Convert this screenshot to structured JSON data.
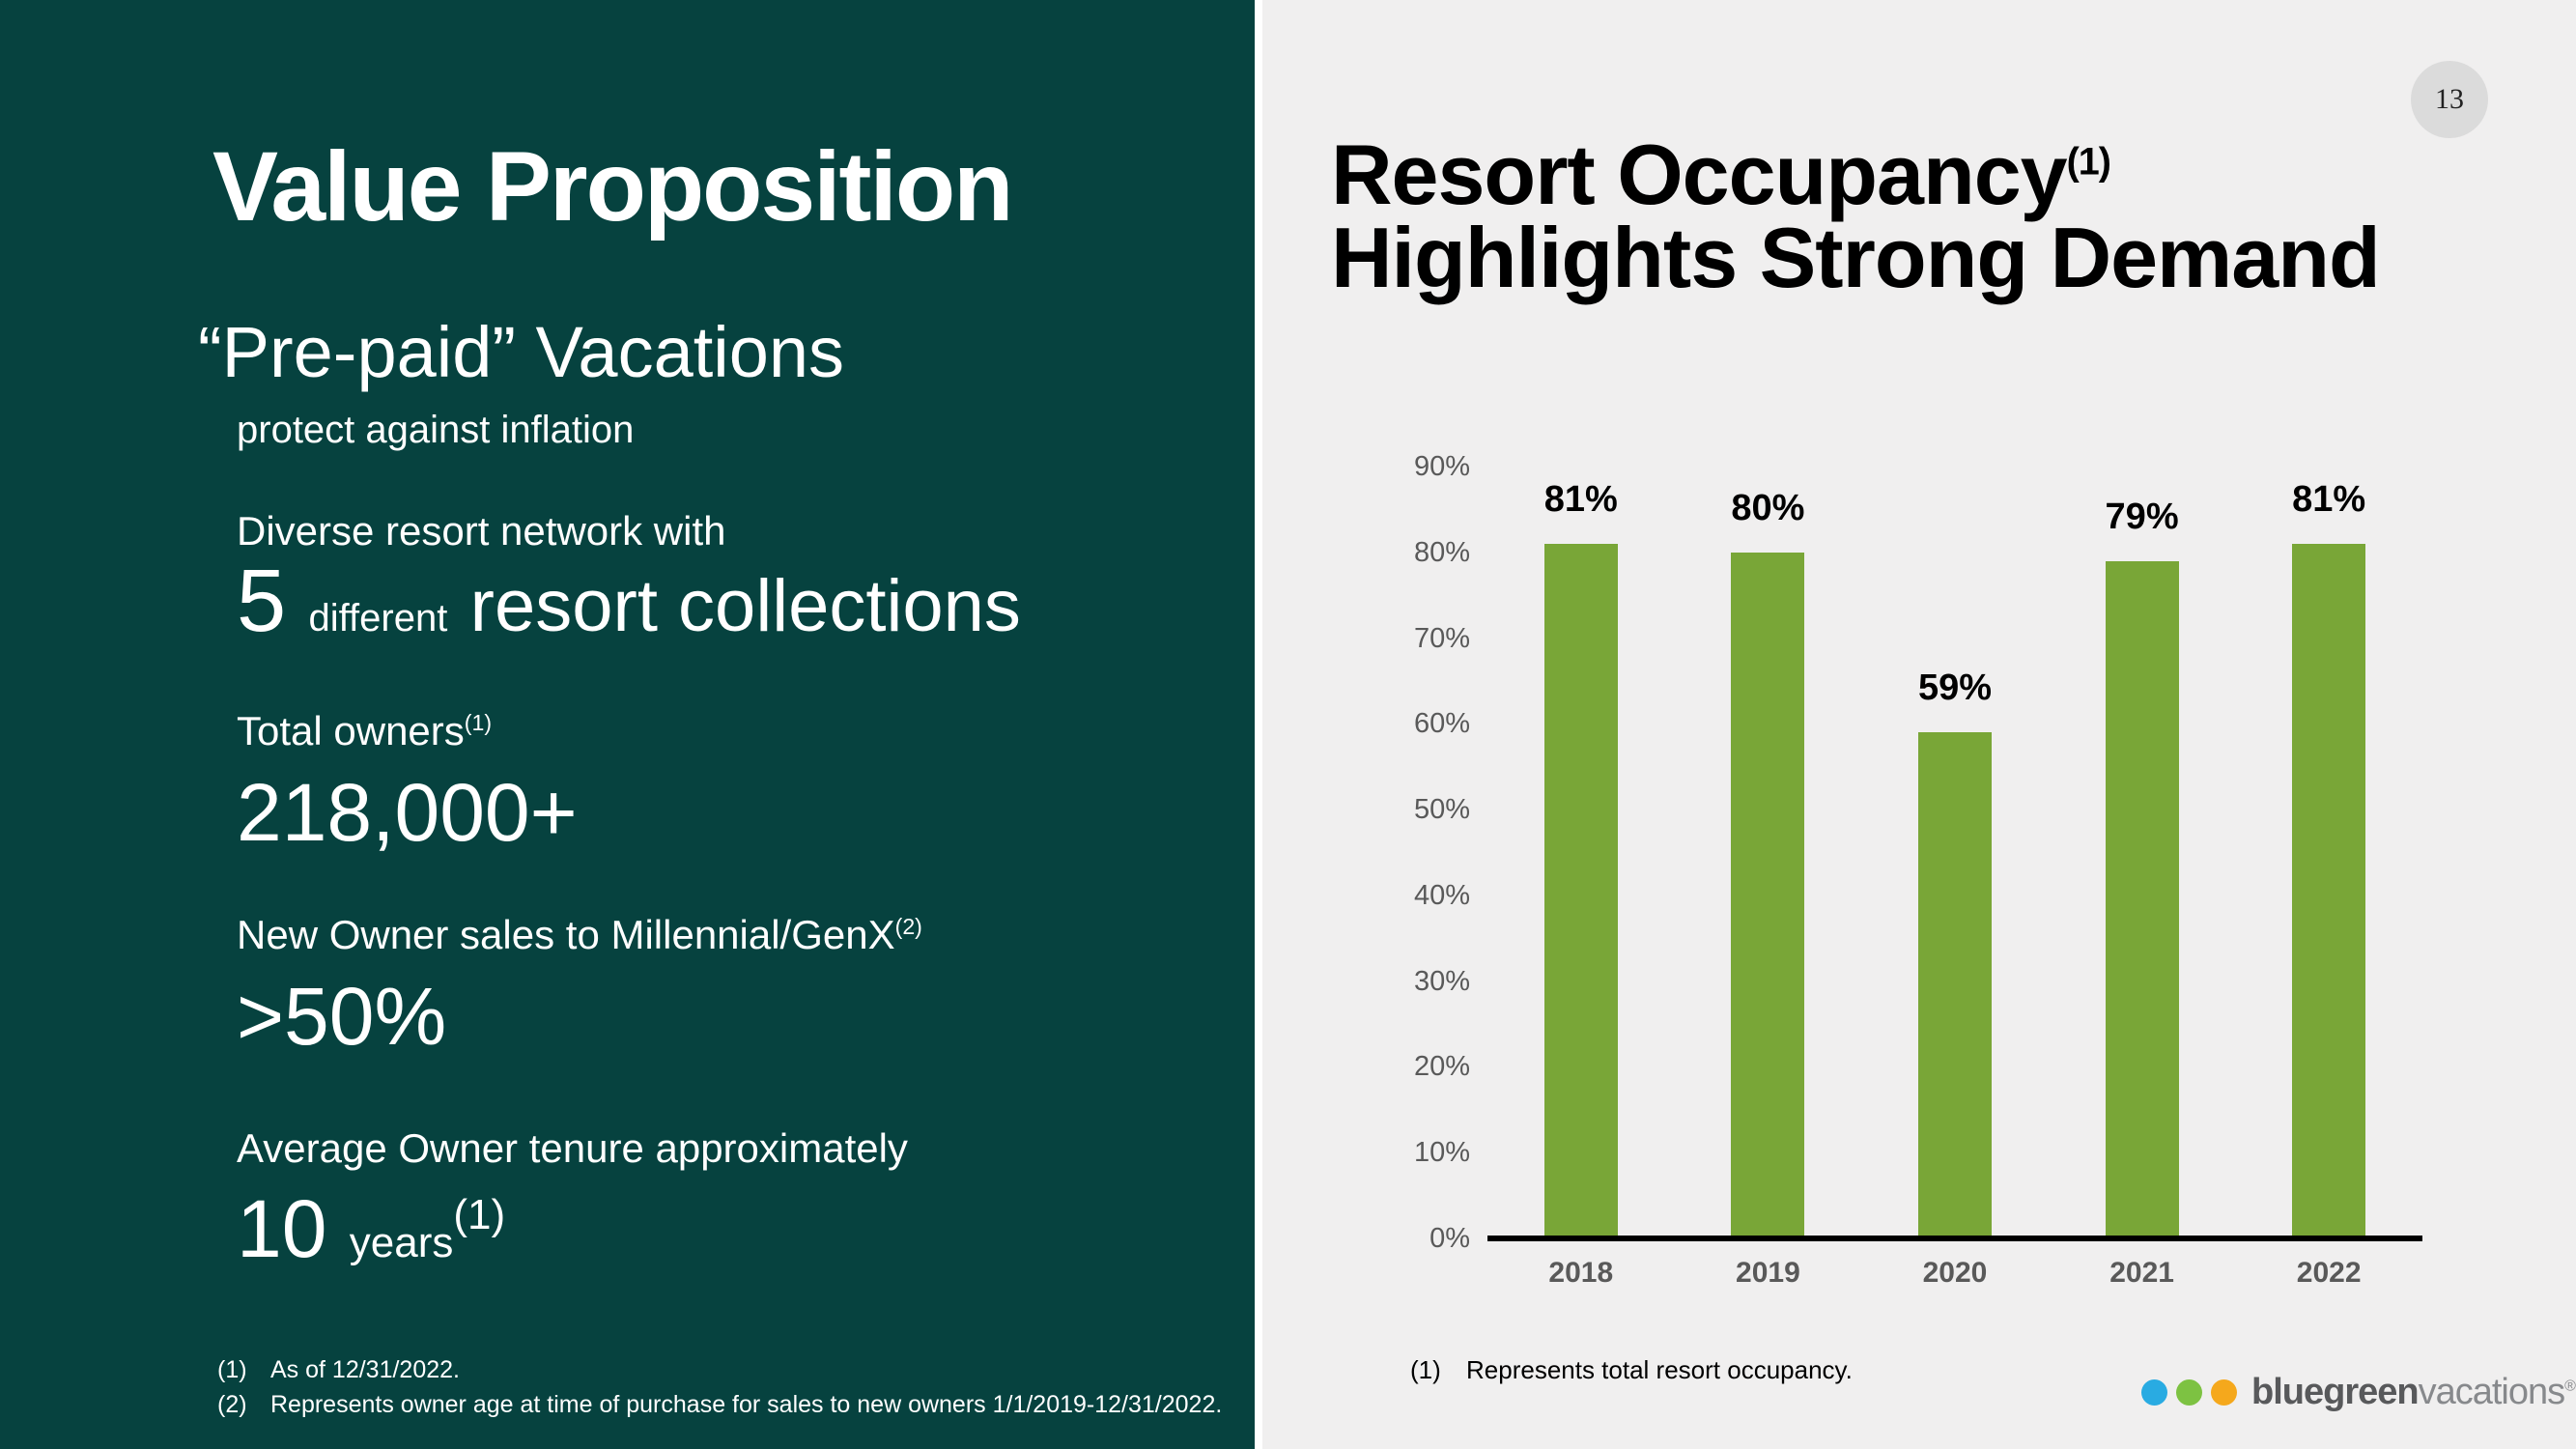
{
  "left_panel": {
    "title": "Value Proposition",
    "prepaid_heading": "“Pre-paid” Vacations",
    "prepaid_sub": "protect against inflation",
    "diverse_label": "Diverse resort network with",
    "diverse_number": "5",
    "diverse_small": "different",
    "diverse_rest": "resort collections",
    "owners_label": "Total owners",
    "owners_sup": "(1)",
    "owners_value": "218,000+",
    "millennial_label": "New Owner sales to Millennial/GenX",
    "millennial_sup": "(2)",
    "millennial_value": ">50%",
    "tenure_label": "Average Owner tenure approximately",
    "tenure_number": "10",
    "tenure_unit": "years",
    "tenure_sup": "(1)",
    "footnotes": [
      {
        "num": "(1)",
        "text": "As of 12/31/2022."
      },
      {
        "num": "(2)",
        "text": "Represents owner age at time of purchase for sales to new owners 1/1/2019-12/31/2022."
      }
    ]
  },
  "right_panel": {
    "page_number": "13",
    "title_line1": "Resort Occupancy",
    "title_sup": "(1)",
    "title_line2": "Highlights Strong Demand",
    "footnote": {
      "num": "(1)",
      "text": "Represents total resort occupancy."
    },
    "logo": {
      "text_bold": "bluegreen",
      "text_light": "vacations",
      "reg": "®"
    }
  },
  "chart_data": {
    "type": "bar",
    "title": "Resort Occupancy Highlights Strong Demand",
    "categories": [
      "2018",
      "2019",
      "2020",
      "2021",
      "2022"
    ],
    "values": [
      81,
      80,
      59,
      79,
      81
    ],
    "data_labels": [
      "81%",
      "80%",
      "59%",
      "79%",
      "81%"
    ],
    "y_ticks": [
      "0%",
      "10%",
      "20%",
      "30%",
      "40%",
      "50%",
      "60%",
      "70%",
      "80%",
      "90%"
    ],
    "ylim": [
      0,
      90
    ],
    "xlabel": "",
    "ylabel": "",
    "grid": "off",
    "legend": "none",
    "bar_color": "#79A637",
    "baseline_color": "#000000",
    "tick_color": "#595959"
  },
  "colors": {
    "left_bg": "#06423F",
    "right_bg": "#F0EFEF",
    "page_circle_bg": "#DBDBDB",
    "logo_blue": "#29ABE2",
    "logo_green": "#7DC242",
    "logo_orange": "#F5A81C",
    "logo_text_dark": "#58595B",
    "logo_text_light": "#87898C"
  }
}
